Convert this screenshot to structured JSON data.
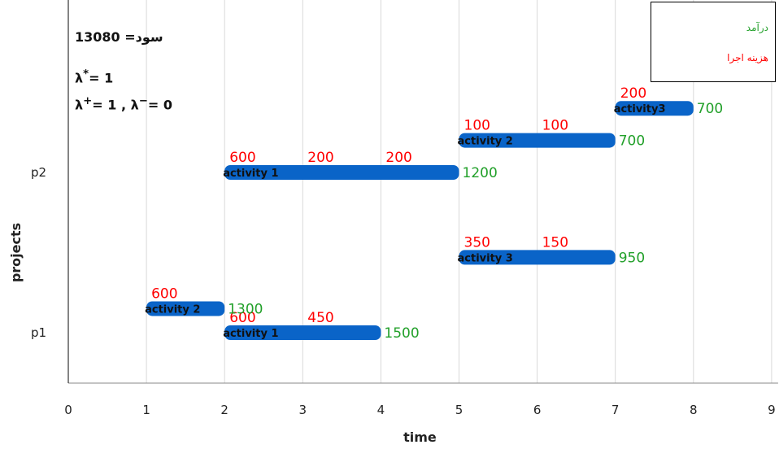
{
  "info": {
    "profit": "13080 =سود",
    "lambda_star": "λ*= 1",
    "lambda_pm": "λ+= 1 , λ−= 0"
  },
  "legend": {
    "revenue": {
      "label": "درآمد",
      "color": "#22a02a"
    },
    "cost": {
      "label": "هزینه اجرا",
      "color": "#ff0000"
    }
  },
  "chart_data": {
    "type": "gantt",
    "xlabel": "time",
    "ylabel": "projects",
    "xlim": [
      0,
      9
    ],
    "x_ticks": [
      "0",
      "1",
      "2",
      "3",
      "4",
      "5",
      "6",
      "7",
      "8",
      "9"
    ],
    "y_categories": [
      "p1",
      "p2"
    ],
    "grid": "vertical",
    "bar_color": "#0a64c8",
    "tasks": [
      {
        "project": "p1",
        "label": "activity 1",
        "start": 2,
        "end": 4,
        "lane": 0.0,
        "costs": [
          {
            "t": 2,
            "v": "600"
          },
          {
            "t": 3,
            "v": "450"
          }
        ],
        "revenue": "1500"
      },
      {
        "project": "p1",
        "label": "activity 2",
        "start": 1,
        "end": 2,
        "lane": 0.3,
        "costs": [
          {
            "t": 1,
            "v": "600"
          }
        ],
        "revenue": "1300"
      },
      {
        "project": "p1",
        "label": "activity 3",
        "start": 5,
        "end": 7,
        "lane": 0.94,
        "costs": [
          {
            "t": 5,
            "v": "350"
          },
          {
            "t": 6,
            "v": "150"
          }
        ],
        "revenue": "950"
      },
      {
        "project": "p2",
        "label": "activity 1",
        "start": 2,
        "end": 5,
        "lane": 2.0,
        "costs": [
          {
            "t": 2,
            "v": "600"
          },
          {
            "t": 3,
            "v": "200"
          },
          {
            "t": 4,
            "v": "200"
          }
        ],
        "revenue": "1200"
      },
      {
        "project": "p2",
        "label": "activity 2",
        "start": 5,
        "end": 7,
        "lane": 2.4,
        "costs": [
          {
            "t": 5,
            "v": "100"
          },
          {
            "t": 6,
            "v": "100"
          }
        ],
        "revenue": "700"
      },
      {
        "project": "p2",
        "label": "activity3",
        "start": 7,
        "end": 8,
        "lane": 2.8,
        "costs": [
          {
            "t": 7,
            "v": "200"
          }
        ],
        "revenue": "700"
      }
    ]
  }
}
